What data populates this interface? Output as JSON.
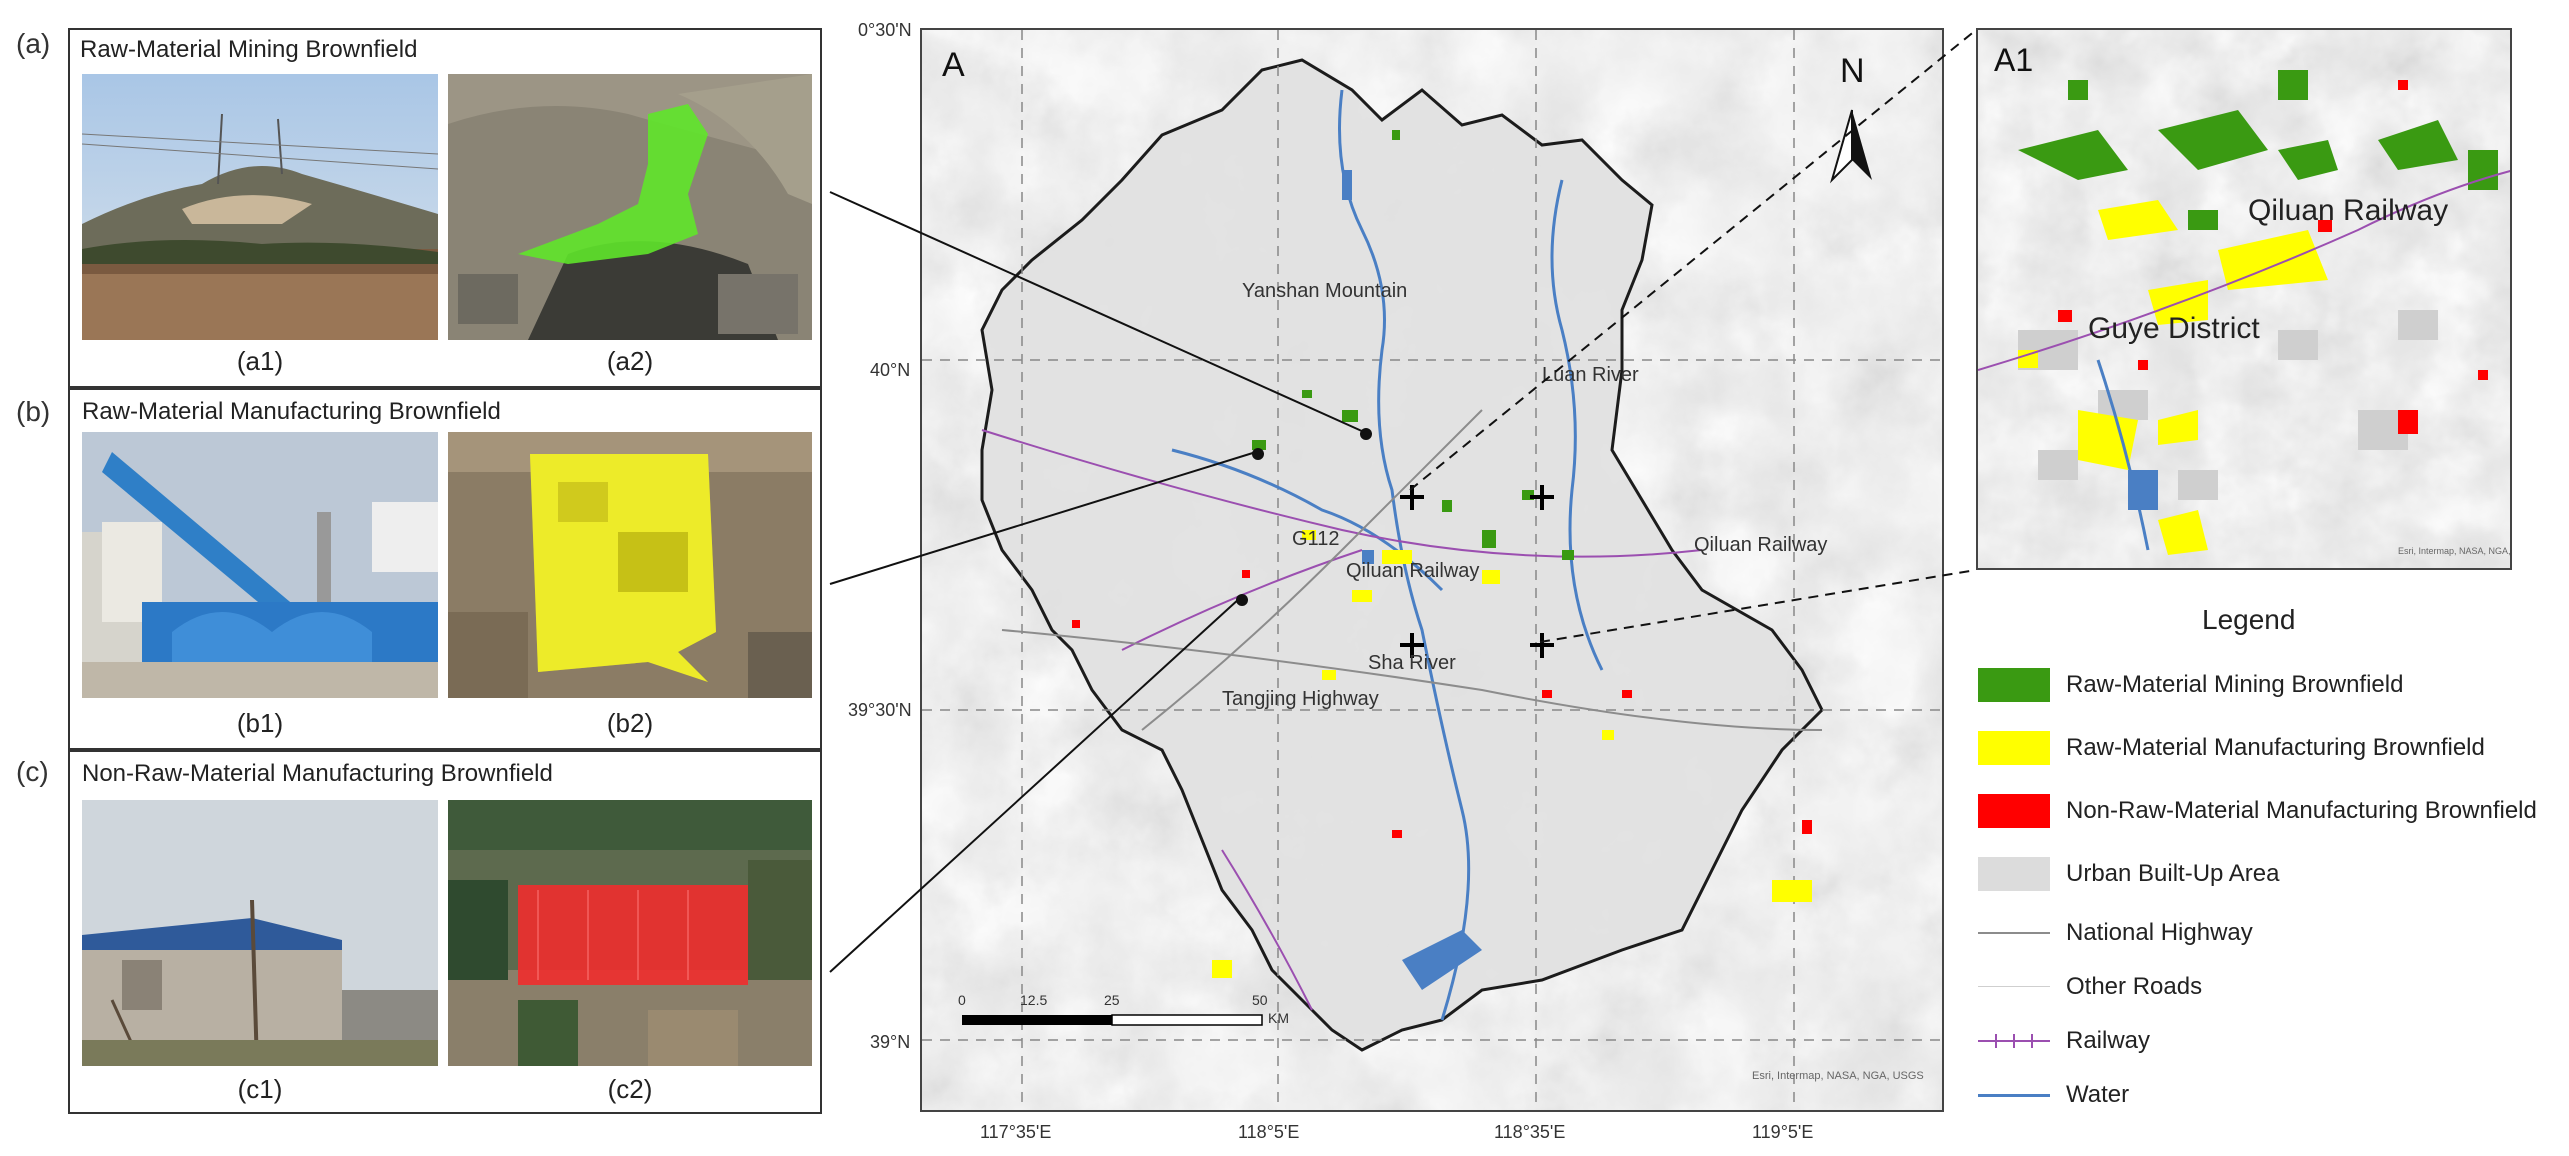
{
  "panels": [
    {
      "letter": "(a)",
      "title": "Raw-Material Mining Brownfield",
      "cap1": "(a1)",
      "cap2": "(a2)"
    },
    {
      "letter": "(b)",
      "title": "Raw-Material Manufacturing Brownfield",
      "cap1": "(b1)",
      "cap2": "(b2)"
    },
    {
      "letter": "(c)",
      "title": "Non-Raw-Material Manufacturing Brownfield",
      "cap1": "(c1)",
      "cap2": "(c2)"
    }
  ],
  "map": {
    "label": "A",
    "north": "N",
    "lat_labels": [
      "0°30'N",
      "40°N",
      "39°30'N",
      "39°N"
    ],
    "lon_labels": [
      "117°35'E",
      "118°5'E",
      "118°35'E",
      "119°5'E"
    ],
    "place_labels": {
      "yanshan": "Yanshan Mountain",
      "luan": "Luan River",
      "qiluan_east": "Qiluan Railway",
      "g112": "G112",
      "qiluan": "Qiluan Railway",
      "sha": "Sha River",
      "tangjing": "Tangjing Highway"
    },
    "scale": {
      "ticks": [
        "0",
        "12.5",
        "25",
        "50"
      ],
      "unit": "KM"
    },
    "credit": "Esri, Intermap, NASA, NGA, USGS"
  },
  "inset": {
    "label": "A1",
    "railway": "Qiluan Railway",
    "district": "Guye District",
    "credit": "Esri, Intermap, NASA, NGA, USGS"
  },
  "legend": {
    "title": "Legend",
    "items": [
      {
        "label": "Raw-Material Mining Brownfield",
        "color": "#3a9a12"
      },
      {
        "label": "Raw-Material Manufacturing Brownfield",
        "color": "#ffff00"
      },
      {
        "label": "Non-Raw-Material Manufacturing Brownfield",
        "color": "#ff0000"
      },
      {
        "label": "Urban Built-Up Area",
        "color": "#dcdcdc"
      },
      {
        "label": "National Highway",
        "color": "#8c8c8c"
      },
      {
        "label": "Other Roads",
        "color": "#d0d0d0"
      },
      {
        "label": "Railway",
        "color": "#9b4fb0"
      },
      {
        "label": "Water",
        "color": "#4a7fc4"
      }
    ]
  }
}
